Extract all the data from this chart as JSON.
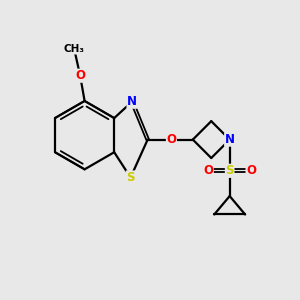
{
  "background_color": "#e8e8e8",
  "atom_colors": {
    "C": "#000000",
    "N": "#0000ff",
    "O": "#ff0000",
    "S": "#cccc00",
    "H": "#000000"
  },
  "bond_color": "#000000",
  "figsize": [
    3.0,
    3.0
  ],
  "dpi": 100
}
